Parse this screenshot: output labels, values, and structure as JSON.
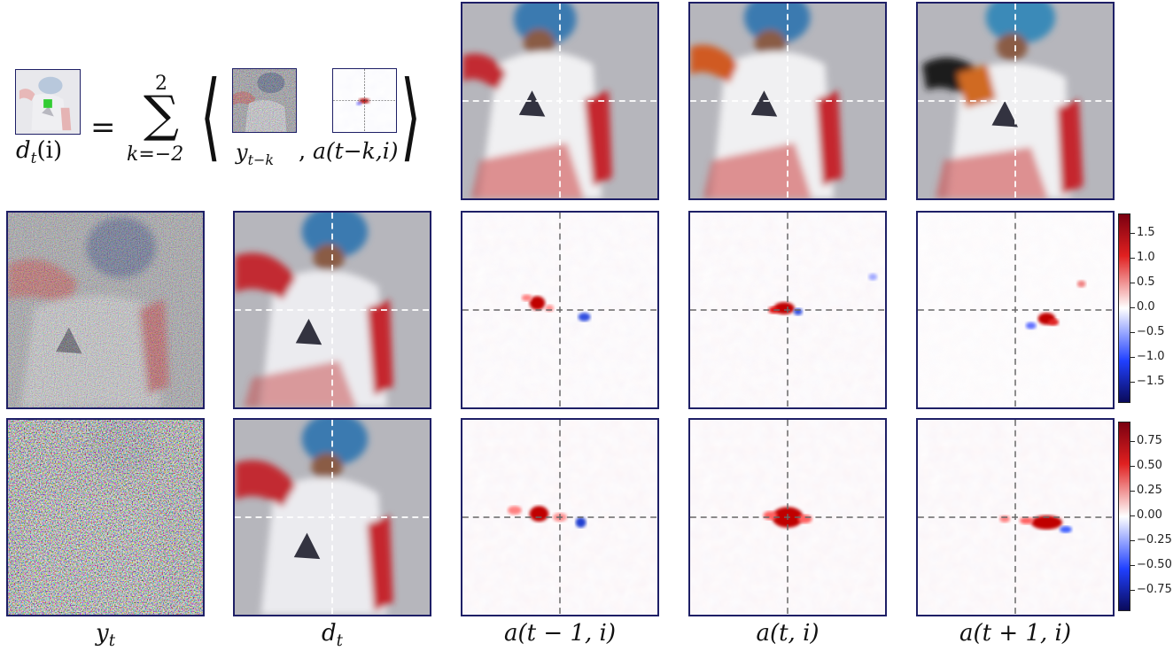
{
  "equation": {
    "lhs": "d",
    "lhs_sub": "t",
    "lhs_arg": "(i)",
    "equals": "=",
    "sum_upper": "2",
    "sum_symbol": "∑",
    "sum_lower": "k=−2",
    "inner_left": "⟨",
    "inner_right": "⟩",
    "term1": "y",
    "term1_sub": "t−k",
    "comma": ",",
    "term2": "a(t−k,i)"
  },
  "column_labels": {
    "y": {
      "main": "y",
      "sub": "t"
    },
    "d": {
      "main": "d",
      "sub": "t"
    },
    "a_prev": "a(t − 1, i)",
    "a_curr": "a(t, i)",
    "a_next": "a(t + 1, i)"
  },
  "colorbar_top": {
    "ticks": [
      "1.5",
      "1.0",
      "0.5",
      "0.0",
      "−0.5",
      "−1.0",
      "−1.5"
    ],
    "values": [
      1.5,
      1.0,
      0.5,
      0.0,
      -0.5,
      -1.0,
      -1.5
    ],
    "range": [
      -1.9,
      1.9
    ]
  },
  "colorbar_bottom": {
    "ticks": [
      "0.75",
      "0.50",
      "0.25",
      "0.00",
      "−0.25",
      "−0.50",
      "−0.75"
    ],
    "values": [
      0.75,
      0.5,
      0.25,
      0.0,
      -0.25,
      -0.5,
      -0.75
    ],
    "range": [
      -0.95,
      0.95
    ]
  },
  "colors": {
    "frame": "#1e1f66",
    "positive": "#c00000",
    "negative": "#1030d0",
    "highlight": "#33cc33"
  }
}
